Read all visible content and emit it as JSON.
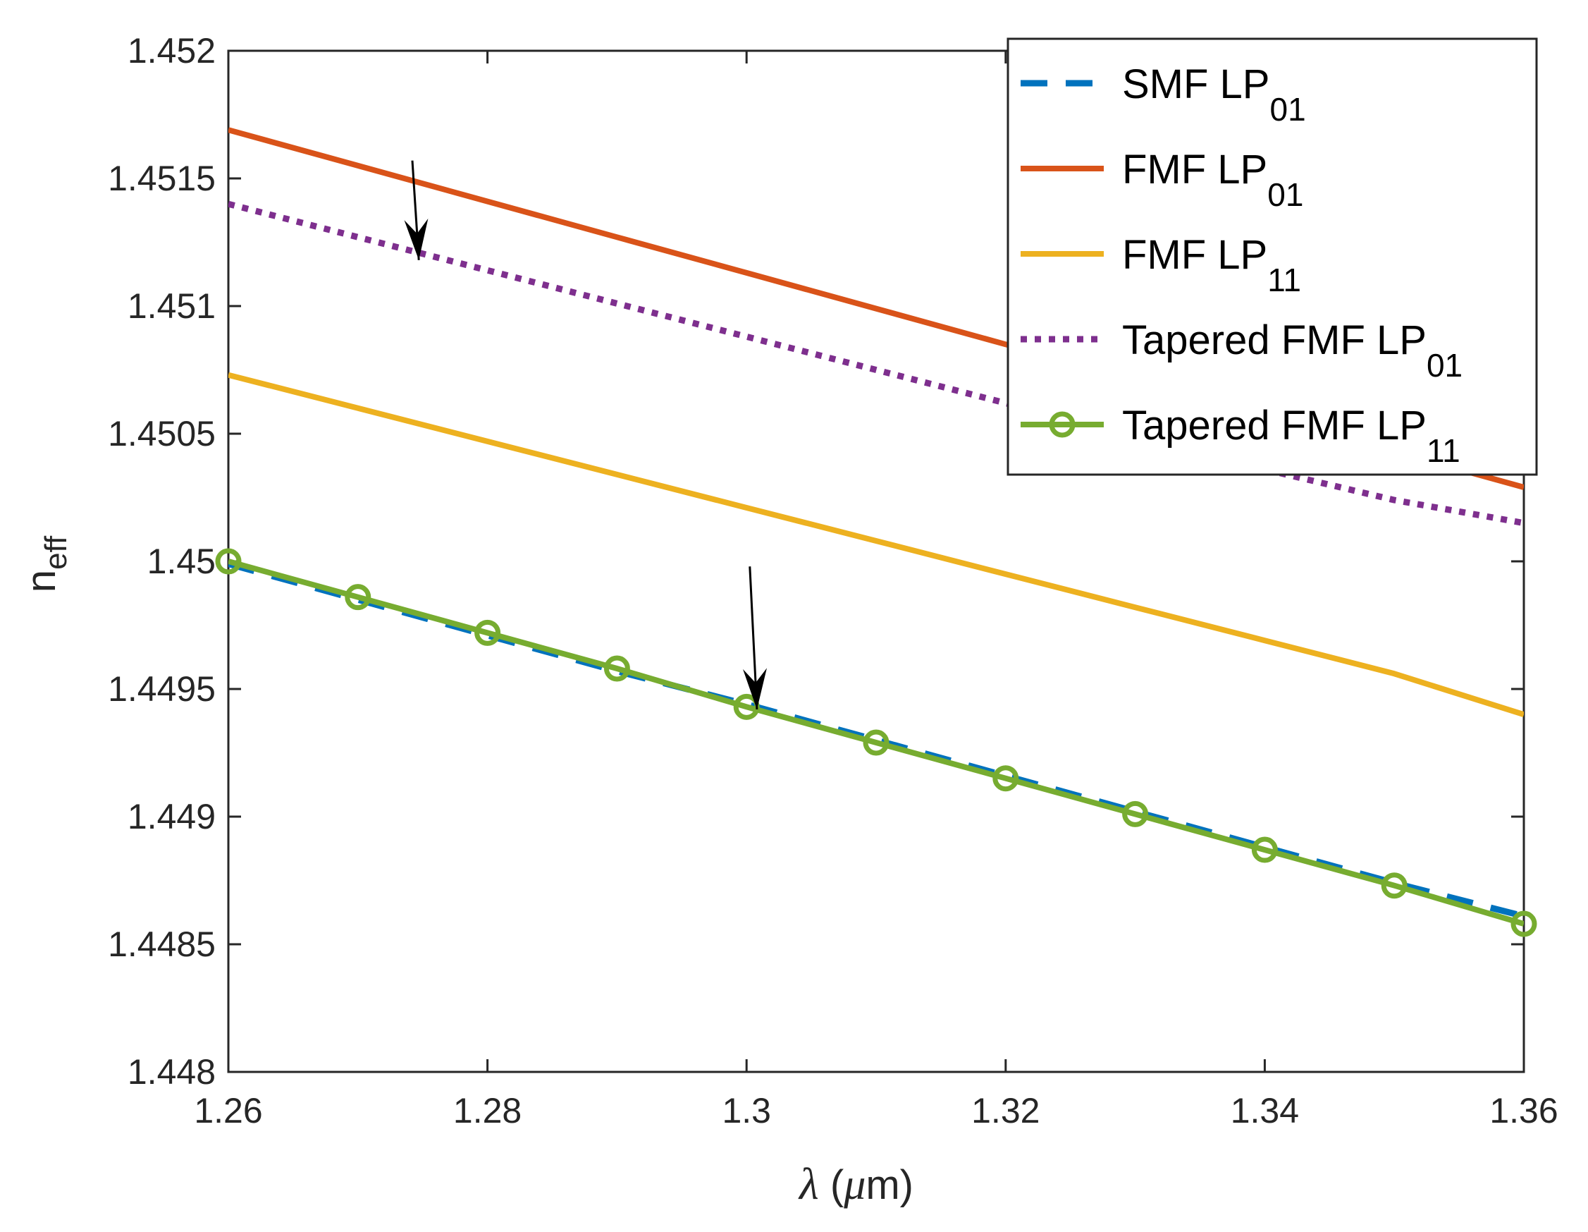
{
  "chart_data": {
    "type": "line",
    "title": "",
    "xlabel": {
      "symbol": "λ",
      "text": " (",
      "mu": "μ",
      "unit": "m)"
    },
    "ylabel": {
      "base": "n",
      "sub": "eff"
    },
    "xlim": [
      1.26,
      1.36
    ],
    "ylim": [
      1.448,
      1.452
    ],
    "x_ticks": [
      1.26,
      1.28,
      1.3,
      1.32,
      1.34,
      1.36
    ],
    "x_tick_labels": [
      "1.26",
      "1.28",
      "1.3",
      "1.32",
      "1.34",
      "1.36"
    ],
    "y_ticks": [
      1.448,
      1.4485,
      1.449,
      1.4495,
      1.45,
      1.4505,
      1.451,
      1.4515,
      1.452
    ],
    "y_tick_labels": [
      "1.448",
      "1.4485",
      "1.449",
      "1.4495",
      "1.45",
      "1.4505",
      "1.451",
      "1.4515",
      "1.452"
    ],
    "legend_position": "top-right",
    "x": [
      1.26,
      1.27,
      1.28,
      1.29,
      1.3,
      1.31,
      1.32,
      1.33,
      1.34,
      1.35,
      1.36
    ],
    "series": [
      {
        "name": "SMF LP01",
        "legend_main": "SMF LP",
        "legend_sub": "01",
        "color": "#0072BD",
        "style": "dashed",
        "marker": "none",
        "values": [
          1.44999,
          1.44985,
          1.44971,
          1.44957,
          1.44944,
          1.4493,
          1.44916,
          1.44902,
          1.44888,
          1.44874,
          1.44861
        ]
      },
      {
        "name": "FMF LP01",
        "legend_main": "FMF LP",
        "legend_sub": "01",
        "color": "#D95319",
        "style": "solid",
        "marker": "none",
        "values": [
          1.45169,
          1.45155,
          1.45141,
          1.45127,
          1.45113,
          1.45099,
          1.45085,
          1.45071,
          1.45057,
          1.45043,
          1.45029
        ]
      },
      {
        "name": "FMF LP11",
        "legend_main": "FMF LP",
        "legend_sub": "11",
        "color": "#EDB120",
        "style": "solid",
        "marker": "none",
        "values": [
          1.45073,
          1.4506,
          1.45047,
          1.45034,
          1.45021,
          1.45008,
          1.44995,
          1.44982,
          1.44969,
          1.44956,
          1.4494
        ]
      },
      {
        "name": "Tapered FMF LP01",
        "legend_main": "Tapered FMF LP",
        "legend_sub": "01",
        "color": "#7E2F8E",
        "style": "dotted",
        "marker": "none",
        "values": [
          1.4514,
          1.45127,
          1.45114,
          1.45101,
          1.45088,
          1.45075,
          1.45062,
          1.45049,
          1.45036,
          1.45024,
          1.45015
        ]
      },
      {
        "name": "Tapered FMF LP11",
        "legend_main": "Tapered FMF LP",
        "legend_sub": "11",
        "color": "#77AC30",
        "style": "solid",
        "marker": "circle",
        "values": [
          1.45,
          1.44986,
          1.44972,
          1.44958,
          1.44943,
          1.44929,
          1.44915,
          1.44901,
          1.44887,
          1.44873,
          1.44858
        ]
      }
    ],
    "annotations": [
      {
        "type": "arrow",
        "from": [
          1.2742,
          1.45157
        ],
        "to": [
          1.2747,
          1.45118
        ]
      },
      {
        "type": "arrow",
        "from": [
          1.30025,
          1.44998
        ],
        "to": [
          1.3008,
          1.44942
        ]
      }
    ]
  }
}
